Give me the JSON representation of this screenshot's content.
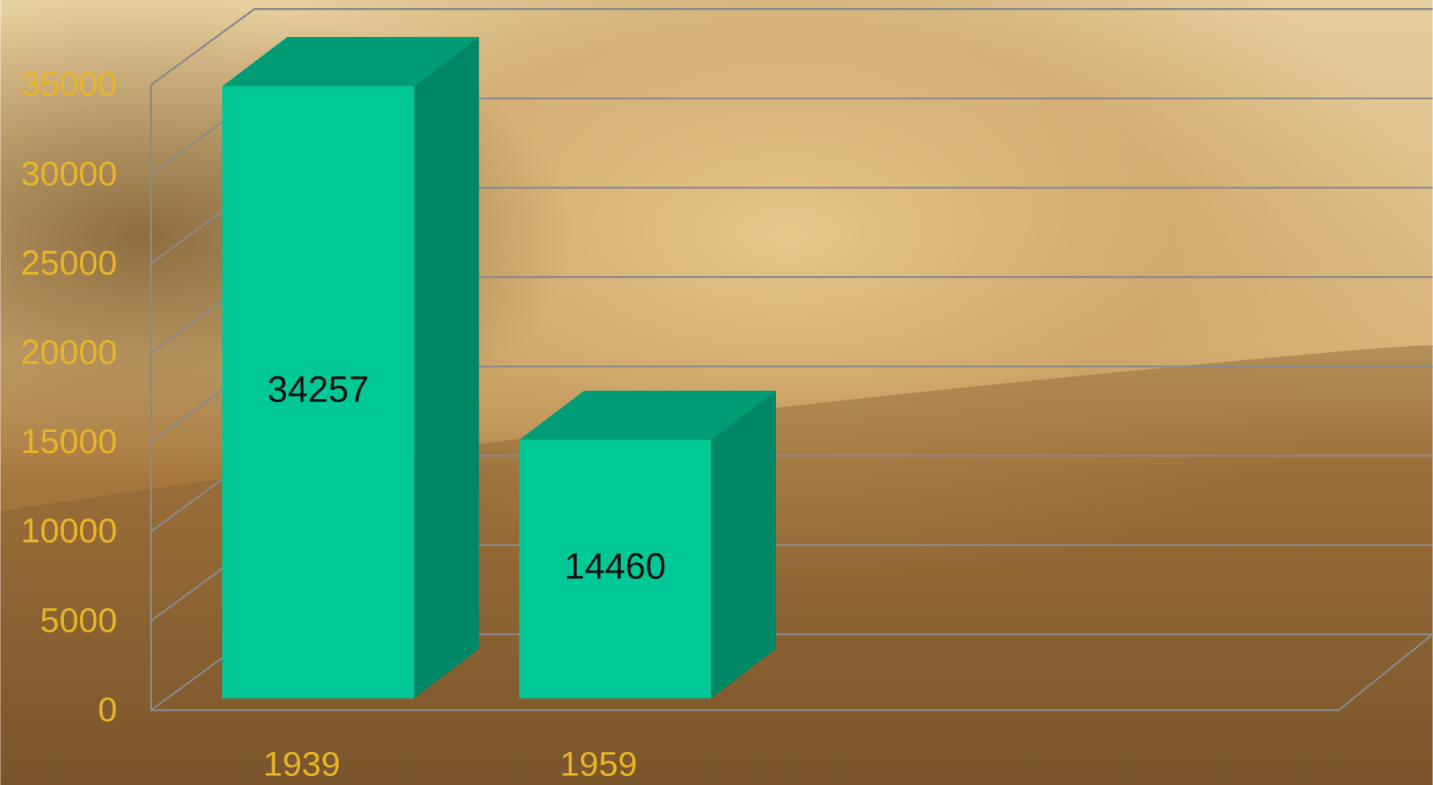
{
  "chart_data": {
    "type": "bar3d",
    "categories": [
      "1939",
      "1959"
    ],
    "values": [
      34257,
      14460
    ],
    "color": "#00c896",
    "ylim": [
      0,
      35000
    ],
    "yticks": [
      0,
      5000,
      10000,
      15000,
      20000,
      25000,
      30000,
      35000
    ],
    "grid": true
  }
}
